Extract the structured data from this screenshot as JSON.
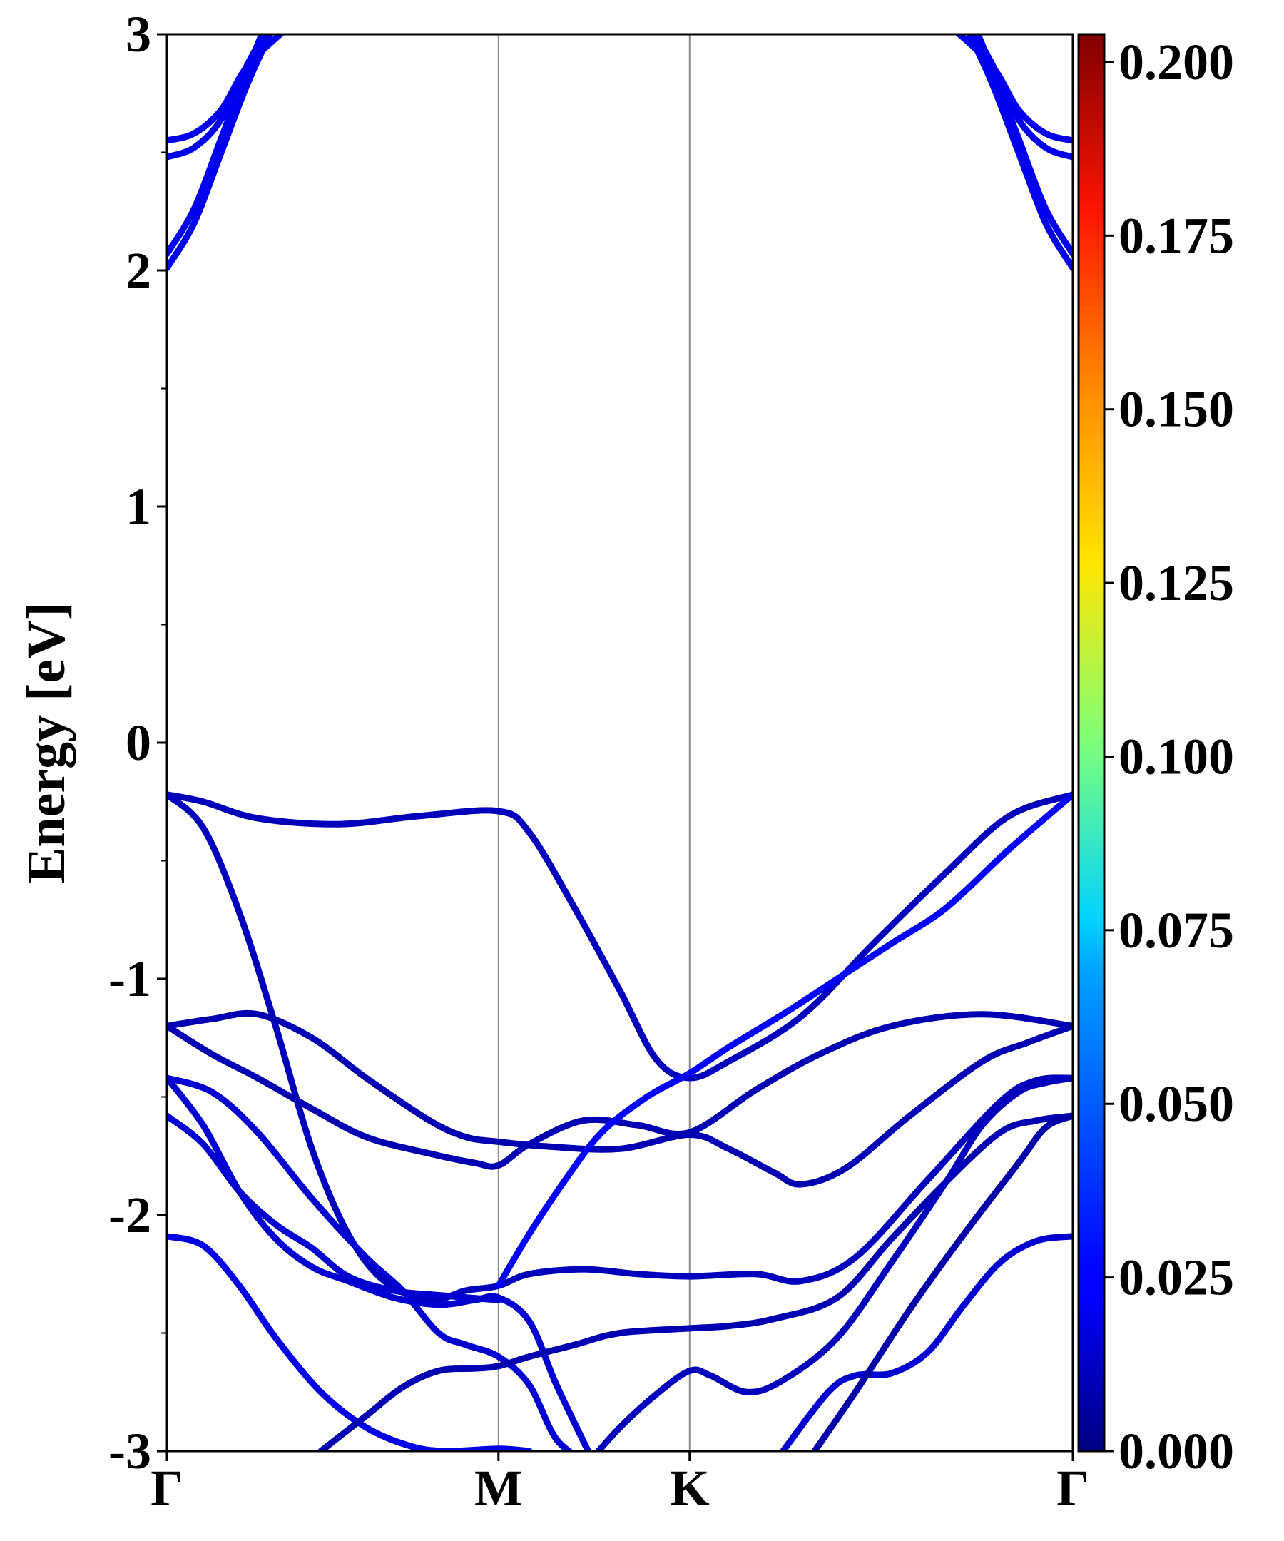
{
  "chart_data": {
    "type": "line",
    "title": "",
    "xlabel": "",
    "ylabel": "Energy [eV]",
    "ylim": [
      -3,
      3
    ],
    "xlim": [
      0,
      1
    ],
    "grid": false,
    "kpath": [
      {
        "label": "Γ",
        "x": 0.0
      },
      {
        "label": "M",
        "x": 0.366
      },
      {
        "label": "K",
        "x": 0.577
      },
      {
        "label": "Γ",
        "x": 1.0
      }
    ],
    "y_ticks": [
      {
        "label": "-3",
        "value": -3
      },
      {
        "label": "-2",
        "value": -2
      },
      {
        "label": "-1",
        "value": -1
      },
      {
        "label": "0",
        "value": 0
      },
      {
        "label": "1",
        "value": 1
      },
      {
        "label": "2",
        "value": 2
      },
      {
        "label": "3",
        "value": 3
      }
    ],
    "y_minor_ticks": [
      -2.5,
      -1.5,
      -0.5,
      0.5,
      1.5,
      2.5
    ],
    "colorbar": {
      "min": 0.0,
      "max": 0.204,
      "colormap": "jet",
      "ticks": [
        {
          "label": "0.000",
          "value": 0.0
        },
        {
          "label": "0.025",
          "value": 0.025
        },
        {
          "label": "0.050",
          "value": 0.05
        },
        {
          "label": "0.075",
          "value": 0.075
        },
        {
          "label": "0.100",
          "value": 0.1
        },
        {
          "label": "0.125",
          "value": 0.125
        },
        {
          "label": "0.150",
          "value": 0.15
        },
        {
          "label": "0.175",
          "value": 0.175
        },
        {
          "label": "0.200",
          "value": 0.2
        }
      ]
    },
    "series": [
      {
        "name": "cb-1",
        "weight": 0.022,
        "points": [
          [
            0.0,
            2.01
          ],
          [
            0.03,
            2.2
          ],
          [
            0.06,
            2.5
          ],
          [
            0.09,
            2.8
          ],
          [
            0.12,
            3.05
          ]
        ]
      },
      {
        "name": "cb-2",
        "weight": 0.022,
        "points": [
          [
            0.0,
            2.07
          ],
          [
            0.03,
            2.26
          ],
          [
            0.06,
            2.56
          ],
          [
            0.09,
            2.86
          ],
          [
            0.11,
            3.05
          ]
        ]
      },
      {
        "name": "cb-3",
        "weight": 0.022,
        "points": [
          [
            0.0,
            2.48
          ],
          [
            0.03,
            2.52
          ],
          [
            0.06,
            2.64
          ],
          [
            0.09,
            2.88
          ],
          [
            0.115,
            3.05
          ]
        ]
      },
      {
        "name": "cb-4",
        "weight": 0.022,
        "points": [
          [
            0.0,
            2.55
          ],
          [
            0.03,
            2.58
          ],
          [
            0.06,
            2.68
          ],
          [
            0.09,
            2.87
          ],
          [
            0.14,
            3.05
          ]
        ]
      },
      {
        "name": "cb-5",
        "weight": 0.022,
        "points": [
          [
            1.0,
            2.01
          ],
          [
            0.97,
            2.2
          ],
          [
            0.94,
            2.5
          ],
          [
            0.91,
            2.8
          ],
          [
            0.88,
            3.05
          ]
        ]
      },
      {
        "name": "cb-6",
        "weight": 0.022,
        "points": [
          [
            1.0,
            2.07
          ],
          [
            0.97,
            2.26
          ],
          [
            0.94,
            2.56
          ],
          [
            0.91,
            2.86
          ],
          [
            0.89,
            3.05
          ]
        ]
      },
      {
        "name": "cb-7",
        "weight": 0.022,
        "points": [
          [
            1.0,
            2.48
          ],
          [
            0.97,
            2.52
          ],
          [
            0.94,
            2.64
          ],
          [
            0.91,
            2.88
          ],
          [
            0.885,
            3.05
          ]
        ]
      },
      {
        "name": "cb-8",
        "weight": 0.022,
        "points": [
          [
            1.0,
            2.55
          ],
          [
            0.97,
            2.58
          ],
          [
            0.94,
            2.68
          ],
          [
            0.91,
            2.87
          ],
          [
            0.86,
            3.05
          ]
        ]
      },
      {
        "name": "vb-1",
        "weight": 0.012,
        "points": [
          [
            0.0,
            -0.22
          ],
          [
            0.04,
            -0.25
          ],
          [
            0.1,
            -0.32
          ],
          [
            0.19,
            -0.345
          ],
          [
            0.28,
            -0.31
          ],
          [
            0.366,
            -0.29
          ],
          [
            0.4,
            -0.38
          ],
          [
            0.45,
            -0.7
          ],
          [
            0.5,
            -1.05
          ],
          [
            0.54,
            -1.34
          ],
          [
            0.577,
            -1.42
          ],
          [
            0.62,
            -1.35
          ],
          [
            0.7,
            -1.16
          ],
          [
            0.78,
            -0.85
          ],
          [
            0.86,
            -0.55
          ],
          [
            0.93,
            -0.31
          ],
          [
            1.0,
            -0.22
          ]
        ]
      },
      {
        "name": "vb-2",
        "weight": 0.012,
        "points": [
          [
            0.0,
            -0.22
          ],
          [
            0.04,
            -0.36
          ],
          [
            0.08,
            -0.72
          ],
          [
            0.12,
            -1.2
          ],
          [
            0.16,
            -1.72
          ],
          [
            0.2,
            -2.08
          ],
          [
            0.24,
            -2.28
          ],
          [
            0.29,
            -2.36
          ],
          [
            0.33,
            -2.32
          ],
          [
            0.366,
            -2.3
          ],
          [
            0.4,
            -2.25
          ],
          [
            0.46,
            -2.23
          ],
          [
            0.52,
            -2.25
          ],
          [
            0.577,
            -2.26
          ],
          [
            0.65,
            -2.25
          ],
          [
            0.7,
            -2.28
          ],
          [
            0.76,
            -2.18
          ],
          [
            0.84,
            -1.85
          ],
          [
            0.92,
            -1.52
          ],
          [
            0.96,
            -1.43
          ],
          [
            1.0,
            -1.42
          ]
        ]
      },
      {
        "name": "vb-3",
        "weight": 0.01,
        "points": [
          [
            0.0,
            -1.2
          ],
          [
            0.05,
            -1.17
          ],
          [
            0.1,
            -1.15
          ],
          [
            0.16,
            -1.25
          ],
          [
            0.22,
            -1.42
          ],
          [
            0.29,
            -1.6
          ],
          [
            0.33,
            -1.67
          ],
          [
            0.366,
            -1.69
          ],
          [
            0.42,
            -1.71
          ],
          [
            0.5,
            -1.72
          ],
          [
            0.577,
            -1.66
          ],
          [
            0.62,
            -1.72
          ],
          [
            0.67,
            -1.82
          ],
          [
            0.7,
            -1.87
          ],
          [
            0.75,
            -1.8
          ],
          [
            0.82,
            -1.58
          ],
          [
            0.9,
            -1.35
          ],
          [
            0.95,
            -1.27
          ],
          [
            1.0,
            -1.2
          ]
        ]
      },
      {
        "name": "vb-4",
        "weight": 0.01,
        "points": [
          [
            0.0,
            -1.2
          ],
          [
            0.05,
            -1.32
          ],
          [
            0.1,
            -1.42
          ],
          [
            0.16,
            -1.55
          ],
          [
            0.22,
            -1.67
          ],
          [
            0.29,
            -1.74
          ],
          [
            0.34,
            -1.78
          ],
          [
            0.366,
            -1.79
          ],
          [
            0.4,
            -1.7
          ],
          [
            0.46,
            -1.6
          ],
          [
            0.52,
            -1.62
          ],
          [
            0.577,
            -1.65
          ],
          [
            0.65,
            -1.47
          ],
          [
            0.72,
            -1.32
          ],
          [
            0.8,
            -1.2
          ],
          [
            0.9,
            -1.15
          ],
          [
            1.0,
            -1.2
          ]
        ]
      },
      {
        "name": "vb-5",
        "weight": 0.025,
        "points": [
          [
            0.366,
            -2.3
          ],
          [
            0.4,
            -2.08
          ],
          [
            0.44,
            -1.85
          ],
          [
            0.48,
            -1.65
          ],
          [
            0.53,
            -1.5
          ],
          [
            0.577,
            -1.4
          ],
          [
            0.62,
            -1.29
          ],
          [
            0.68,
            -1.15
          ],
          [
            0.74,
            -1.0
          ],
          [
            0.8,
            -0.85
          ],
          [
            0.86,
            -0.7
          ],
          [
            0.93,
            -0.45
          ],
          [
            1.0,
            -0.22
          ]
        ]
      },
      {
        "name": "vb-6",
        "weight": 0.016,
        "points": [
          [
            0.0,
            -1.42
          ],
          [
            0.05,
            -1.48
          ],
          [
            0.1,
            -1.65
          ],
          [
            0.16,
            -1.93
          ],
          [
            0.22,
            -2.18
          ],
          [
            0.26,
            -2.32
          ],
          [
            0.3,
            -2.5
          ],
          [
            0.33,
            -2.55
          ],
          [
            0.366,
            -2.6
          ],
          [
            0.4,
            -2.72
          ],
          [
            0.43,
            -2.95
          ],
          [
            0.465,
            -3.05
          ]
        ]
      },
      {
        "name": "vb-7",
        "weight": 0.016,
        "points": [
          [
            0.0,
            -1.42
          ],
          [
            0.04,
            -1.62
          ],
          [
            0.08,
            -1.9
          ],
          [
            0.12,
            -2.1
          ],
          [
            0.16,
            -2.22
          ],
          [
            0.2,
            -2.28
          ],
          [
            0.25,
            -2.35
          ],
          [
            0.3,
            -2.38
          ],
          [
            0.34,
            -2.36
          ],
          [
            0.366,
            -2.35
          ],
          [
            0.4,
            -2.45
          ],
          [
            0.43,
            -2.72
          ],
          [
            0.465,
            -3.0
          ]
        ]
      },
      {
        "name": "vb-8",
        "weight": 0.016,
        "points": [
          [
            0.0,
            -1.58
          ],
          [
            0.04,
            -1.7
          ],
          [
            0.08,
            -1.9
          ],
          [
            0.12,
            -2.04
          ],
          [
            0.16,
            -2.14
          ],
          [
            0.2,
            -2.26
          ],
          [
            0.25,
            -2.32
          ],
          [
            0.3,
            -2.34
          ],
          [
            0.366,
            -2.36
          ]
        ]
      },
      {
        "name": "vb-9",
        "weight": 0.02,
        "points": [
          [
            0.0,
            -2.09
          ],
          [
            0.04,
            -2.13
          ],
          [
            0.08,
            -2.3
          ],
          [
            0.12,
            -2.52
          ],
          [
            0.17,
            -2.75
          ],
          [
            0.22,
            -2.9
          ],
          [
            0.27,
            -2.98
          ],
          [
            0.31,
            -3.0
          ],
          [
            0.366,
            -2.99
          ],
          [
            0.4,
            -3.0
          ]
        ]
      },
      {
        "name": "vb-10",
        "weight": 0.01,
        "points": [
          [
            0.17,
            -3.0
          ],
          [
            0.22,
            -2.85
          ],
          [
            0.26,
            -2.73
          ],
          [
            0.3,
            -2.66
          ],
          [
            0.34,
            -2.65
          ],
          [
            0.366,
            -2.64
          ],
          [
            0.4,
            -2.6
          ],
          [
            0.45,
            -2.55
          ],
          [
            0.5,
            -2.5
          ],
          [
            0.577,
            -2.48
          ],
          [
            0.62,
            -2.47
          ],
          [
            0.67,
            -2.44
          ],
          [
            0.74,
            -2.35
          ],
          [
            0.8,
            -2.1
          ],
          [
            0.86,
            -1.86
          ],
          [
            0.92,
            -1.65
          ],
          [
            0.96,
            -1.6
          ],
          [
            1.0,
            -1.58
          ]
        ]
      },
      {
        "name": "vb-11",
        "weight": 0.012,
        "points": [
          [
            0.465,
            -3.05
          ],
          [
            0.5,
            -2.9
          ],
          [
            0.54,
            -2.76
          ],
          [
            0.577,
            -2.66
          ],
          [
            0.6,
            -2.68
          ],
          [
            0.64,
            -2.75
          ],
          [
            0.68,
            -2.7
          ],
          [
            0.74,
            -2.52
          ],
          [
            0.8,
            -2.2
          ],
          [
            0.86,
            -1.86
          ],
          [
            0.9,
            -1.62
          ],
          [
            0.94,
            -1.48
          ],
          [
            0.97,
            -1.44
          ],
          [
            1.0,
            -1.42
          ]
        ]
      },
      {
        "name": "vb-12",
        "weight": 0.016,
        "points": [
          [
            0.68,
            -3.0
          ],
          [
            0.73,
            -2.75
          ],
          [
            0.76,
            -2.68
          ],
          [
            0.8,
            -2.67
          ],
          [
            0.84,
            -2.58
          ],
          [
            0.88,
            -2.38
          ],
          [
            0.92,
            -2.2
          ],
          [
            0.96,
            -2.11
          ],
          [
            1.0,
            -2.09
          ]
        ]
      },
      {
        "name": "vb-13",
        "weight": 0.008,
        "points": [
          [
            0.715,
            -3.0
          ],
          [
            0.76,
            -2.75
          ],
          [
            0.82,
            -2.4
          ],
          [
            0.88,
            -2.08
          ],
          [
            0.94,
            -1.78
          ],
          [
            0.97,
            -1.63
          ],
          [
            1.0,
            -1.58
          ]
        ]
      }
    ]
  }
}
